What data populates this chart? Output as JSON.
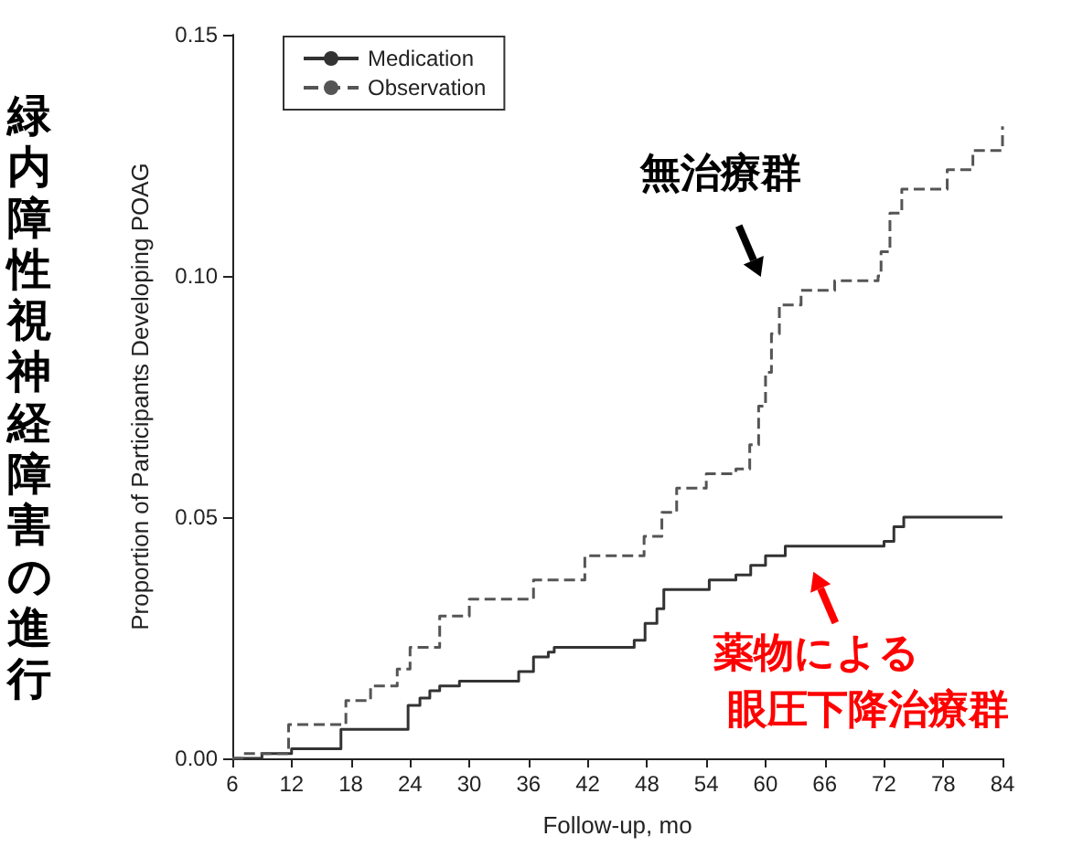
{
  "chart_data": {
    "type": "step",
    "title": "緑内障性視神経障害の進行",
    "xlabel": "Follow-up, mo",
    "ylabel": "Proportion of Participants Developing POAG",
    "xlim": [
      6,
      84
    ],
    "xticks": [
      6,
      12,
      18,
      24,
      30,
      36,
      42,
      48,
      54,
      60,
      66,
      72,
      78,
      84
    ],
    "ylim": [
      0,
      0.15
    ],
    "yticks": [
      {
        "value": 0,
        "label": "0.00"
      },
      {
        "value": 0.05,
        "label": "0.05"
      },
      {
        "value": 0.1,
        "label": "0.10"
      },
      {
        "value": 0.15,
        "label": "0.15"
      }
    ],
    "grid": false,
    "legend": "top left",
    "marker": "none",
    "series": [
      {
        "name": "Medication",
        "color": "#333333",
        "line_style": "solid",
        "x": [
          6,
          9,
          12,
          17,
          23.8,
          25,
          26,
          27,
          29,
          35,
          36.5,
          38,
          38.6,
          46.7,
          47.8,
          49,
          49.7,
          54.3,
          57,
          58.5,
          60,
          62,
          72,
          73,
          74,
          84
        ],
        "values": [
          0,
          0.001,
          0.002,
          0.006,
          0.011,
          0.0125,
          0.014,
          0.015,
          0.016,
          0.018,
          0.021,
          0.022,
          0.023,
          0.0245,
          0.028,
          0.031,
          0.035,
          0.037,
          0.038,
          0.04,
          0.042,
          0.044,
          0.045,
          0.048,
          0.05,
          0.05
        ]
      },
      {
        "name": "Observation",
        "color": "#555555",
        "line_style": "dashed",
        "x": [
          6,
          7,
          11.7,
          17.5,
          20,
          22.7,
          24,
          27,
          30,
          36.5,
          41.7,
          47.7,
          49.5,
          51,
          54,
          57,
          58.4,
          59.3,
          60,
          60.6,
          61.4,
          63.6,
          67,
          71.4,
          71.7,
          72.6,
          73.8,
          78.4,
          81,
          84
        ],
        "values": [
          0,
          0.001,
          0.007,
          0.012,
          0.015,
          0.0185,
          0.023,
          0.0295,
          0.033,
          0.037,
          0.042,
          0.046,
          0.051,
          0.056,
          0.059,
          0.06,
          0.065,
          0.073,
          0.08,
          0.088,
          0.094,
          0.097,
          0.099,
          0.1,
          0.105,
          0.113,
          0.118,
          0.122,
          0.126,
          0.131
        ]
      }
    ],
    "annotations": [
      {
        "text": "無治療群",
        "x": 61,
        "y": 0.096
      },
      {
        "text": "薬物による",
        "x": 63,
        "y": 0.044
      },
      "眼圧下降治療群"
    ]
  }
}
